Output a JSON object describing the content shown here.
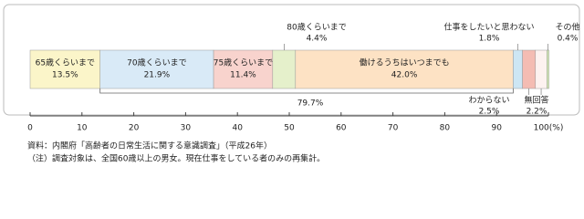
{
  "chart_data": {
    "type": "stacked-bar",
    "categories": [
      "65歳くらいまで",
      "70歳くらいまで",
      "75歳くらいまで",
      "80歳くらいまで",
      "働けるうちはいつまでも",
      "仕事をしたいと思わない",
      "わからない",
      "無回答",
      "その他"
    ],
    "values": [
      13.5,
      21.9,
      11.4,
      4.4,
      42.0,
      1.8,
      2.5,
      2.2,
      0.4
    ],
    "value_labels": [
      "13.5%",
      "21.9%",
      "11.4%",
      "4.4%",
      "42.0%",
      "1.8%",
      "2.5%",
      "2.2%",
      "0.4%"
    ],
    "colors": [
      "#fbf5c9",
      "#d9eaf7",
      "#f8d3cd",
      "#e5f0cb",
      "#fde2c4",
      "#cde6f4",
      "#f4bcb3",
      "#fdf2f0",
      "#d3e8b6"
    ],
    "xlim": [
      0,
      100
    ],
    "xticks": [
      0,
      10,
      20,
      30,
      40,
      50,
      60,
      70,
      80,
      90,
      {
        "value": 100,
        "label": "100(%)"
      }
    ],
    "annotation": "79.7%",
    "source": "資料：内閣府「高齢者の日常生活に関する意識調査」（平成26年）",
    "note": "（注）調査対象は、全国60歳以上の男女。現在仕事をしている者のみの再集計。"
  }
}
